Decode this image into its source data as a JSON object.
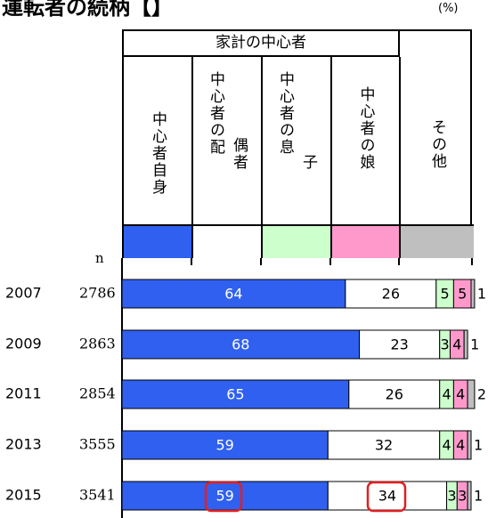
{
  "title": "運転者の続柄【】",
  "unit": "(%)",
  "chart_data": {
    "type": "stacked_bar",
    "group_label": "家計の中心者",
    "n_label": "n",
    "categories": [
      "2007",
      "2009",
      "2011",
      "2013",
      "2015"
    ],
    "n": [
      2786,
      2863,
      2854,
      3555,
      3541
    ],
    "series": [
      {
        "name": "中心者自身",
        "color": "#3060f0",
        "values": [
          64,
          68,
          65,
          59,
          59
        ]
      },
      {
        "name": "中心者の配偶者",
        "color": "#ffffff",
        "values": [
          26,
          23,
          26,
          32,
          34
        ]
      },
      {
        "name": "中心者の息子",
        "color": "#ccffcc",
        "values": [
          5,
          3,
          4,
          4,
          3
        ]
      },
      {
        "name": "中心者の娘",
        "color": "#ff99cc",
        "values": [
          5,
          4,
          4,
          4,
          3
        ]
      },
      {
        "name": "その他",
        "color": "#bfbfbf",
        "values": [
          1,
          1,
          2,
          1,
          1
        ]
      }
    ],
    "xlim": [
      0,
      100
    ]
  }
}
